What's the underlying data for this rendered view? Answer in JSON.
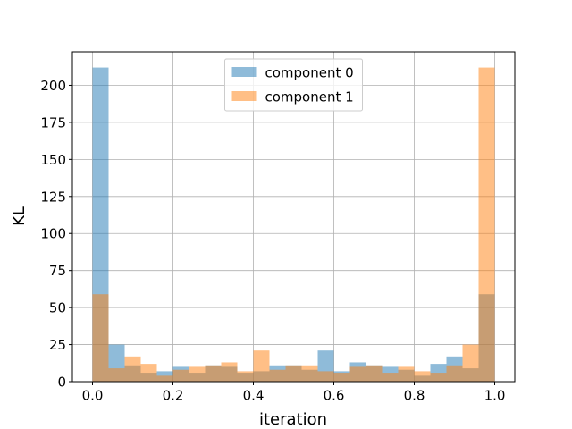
{
  "chart_data": {
    "type": "histogram",
    "xlabel": "iteration",
    "ylabel": "KL",
    "bins": [
      0,
      0.04,
      0.08,
      0.12,
      0.16,
      0.2,
      0.24,
      0.28,
      0.32,
      0.36,
      0.4,
      0.44,
      0.48,
      0.52,
      0.56,
      0.6,
      0.64,
      0.68,
      0.72,
      0.76,
      0.8,
      0.84,
      0.88,
      0.92,
      0.96,
      1.0
    ],
    "series": [
      {
        "name": "component 0",
        "color": "#1f77b4",
        "values": [
          212,
          25,
          11,
          6,
          7,
          10,
          6,
          11,
          10,
          6,
          7,
          11,
          11,
          8,
          21,
          7,
          13,
          11,
          10,
          8,
          4,
          12,
          17,
          9,
          59
        ]
      },
      {
        "name": "component 1",
        "color": "#ff7f0e",
        "values": [
          59,
          9,
          17,
          12,
          4,
          8,
          10,
          11,
          13,
          7,
          21,
          8,
          11,
          11,
          7,
          6,
          10,
          11,
          6,
          10,
          7,
          6,
          11,
          25,
          212
        ]
      }
    ],
    "opacity": 0.5,
    "xlim": [
      -0.05,
      1.05
    ],
    "ylim": [
      0,
      222.6
    ],
    "xticks": [
      {
        "value": 0,
        "label": "0.0"
      },
      {
        "value": 0.2,
        "label": "0.2"
      },
      {
        "value": 0.4,
        "label": "0.4"
      },
      {
        "value": 0.6,
        "label": "0.6"
      },
      {
        "value": 0.8,
        "label": "0.8"
      },
      {
        "value": 1.0,
        "label": "1.0"
      }
    ],
    "yticks": [
      0,
      25,
      50,
      75,
      100,
      125,
      150,
      175,
      200
    ],
    "grid": true,
    "legend": "upper center"
  }
}
